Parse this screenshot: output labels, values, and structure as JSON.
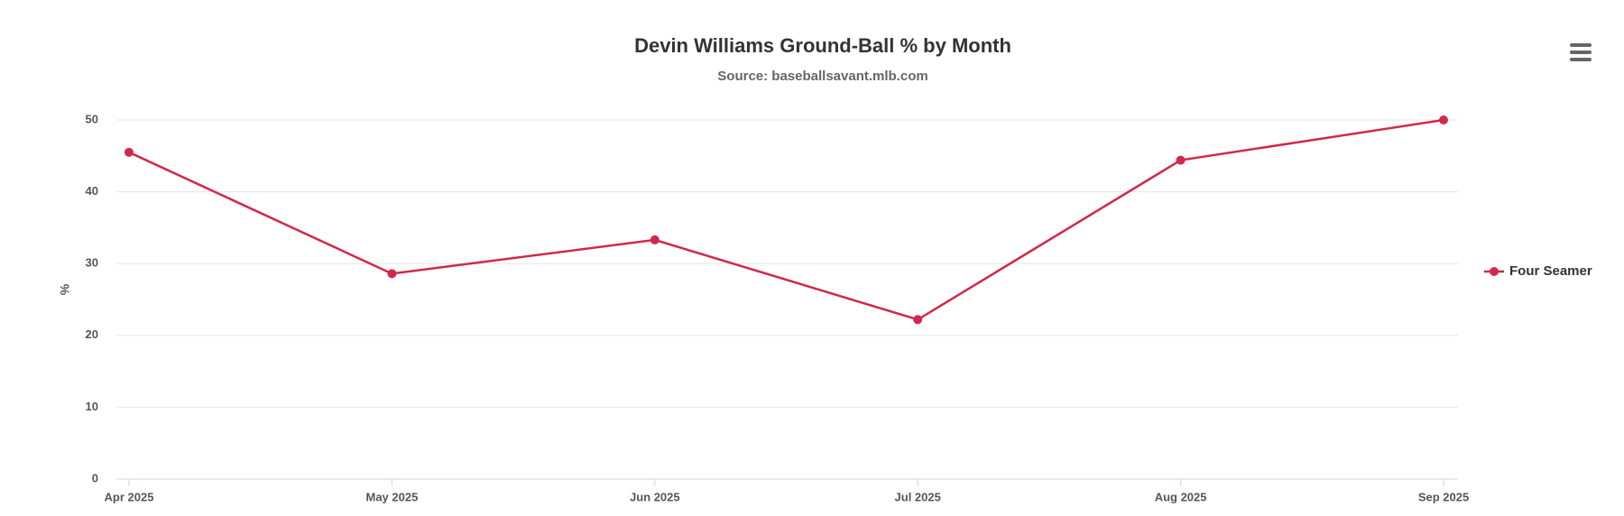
{
  "chart_data": {
    "type": "line",
    "title": "Devin Williams Ground-Ball % by Month",
    "subtitle": "Source: baseballsavant.mlb.com",
    "y_label": "%",
    "categories": [
      "Apr 2025",
      "May 2025",
      "Jun 2025",
      "Jul 2025",
      "Aug 2025",
      "Sep 2025"
    ],
    "series": [
      {
        "name": "Four Seamer",
        "color": "#d0294b",
        "values": [
          45.5,
          28.6,
          33.3,
          22.2,
          44.4,
          50
        ]
      }
    ],
    "ylim": [
      0,
      50
    ],
    "yticks": [
      0,
      10,
      20,
      30,
      40,
      50
    ],
    "grid": true,
    "legend": "right"
  }
}
